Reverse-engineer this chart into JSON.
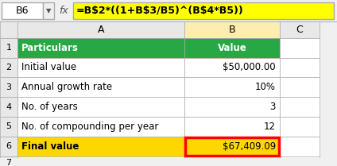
{
  "formula_bar_cell": "B6",
  "formula_bar_formula": "=B$2*((1+B$3/B5)^(B$4*B5))",
  "col_headers": [
    "A",
    "B",
    "C"
  ],
  "rows": [
    {
      "row": 1,
      "label": "Particulars",
      "value": "Value",
      "label_bold": true,
      "value_bold": true,
      "label_bg": "#27A844",
      "value_bg": "#27A844",
      "label_color": "#FFFFFF",
      "value_color": "#FFFFFF"
    },
    {
      "row": 2,
      "label": "Initial value",
      "value": "$50,000.00",
      "label_bold": false,
      "value_bold": false,
      "label_bg": "#FFFFFF",
      "value_bg": "#FFFFFF",
      "label_color": "#000000",
      "value_color": "#000000"
    },
    {
      "row": 3,
      "label": "Annual growth rate",
      "value": "10%",
      "label_bold": false,
      "value_bold": false,
      "label_bg": "#FFFFFF",
      "value_bg": "#FFFFFF",
      "label_color": "#000000",
      "value_color": "#000000"
    },
    {
      "row": 4,
      "label": "No. of years",
      "value": "3",
      "label_bold": false,
      "value_bold": false,
      "label_bg": "#FFFFFF",
      "value_bg": "#FFFFFF",
      "label_color": "#000000",
      "value_color": "#000000"
    },
    {
      "row": 5,
      "label": "No. of compounding per year",
      "value": "12",
      "label_bold": false,
      "value_bold": false,
      "label_bg": "#FFFFFF",
      "value_bg": "#FFFFFF",
      "label_color": "#000000",
      "value_color": "#000000"
    },
    {
      "row": 6,
      "label": "Final value",
      "value": "$67,409.09",
      "label_bold": true,
      "value_bold": false,
      "label_bg": "#FFD700",
      "value_bg": "#FFD700",
      "label_color": "#000000",
      "value_color": "#000000",
      "value_border_red": true
    }
  ],
  "row_num_bg": "#E8E8E8",
  "header_row_bg": "#E8E8E8",
  "formula_bg": "#FFFF00",
  "formula_text_color": "#000000",
  "grid_color": "#AAAAAA",
  "formula_bar_bg": "#FFFFFF",
  "col_header_bg": "#E8E8E8",
  "col_b_header_bg": "#FDEDB0",
  "extra_row7": true
}
